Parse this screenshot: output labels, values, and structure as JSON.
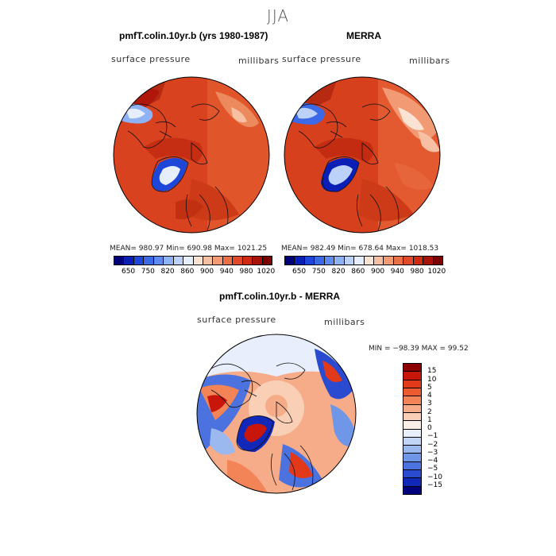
{
  "figure": {
    "title": "JJA"
  },
  "panels": {
    "model": {
      "title": "pmfT.colin.10yr.b (yrs 1980-1987)",
      "left_label": "surface pressure",
      "right_label": "millibars",
      "stats": "MEAN= 980.97   Min= 690.98   Max= 1021.25"
    },
    "obs": {
      "title": "MERRA",
      "left_label": "surface pressure",
      "right_label": "millibars",
      "stats": "MEAN= 982.49   Min= 678.64   Max= 1018.53"
    },
    "diff": {
      "title": "pmfT.colin.10yr.b - MERRA",
      "left_label": "surface pressure",
      "right_label": "millibars",
      "stats": "MIN = −98.39 MAX =  99.52"
    }
  },
  "colorbar_abs": {
    "ticks": [
      "650",
      "750",
      "820",
      "860",
      "900",
      "940",
      "980",
      "1020"
    ],
    "colors": [
      "#00007a",
      "#0a1fb5",
      "#1e46d9",
      "#3c69e6",
      "#5d8bef",
      "#8fb2f5",
      "#bcd2fa",
      "#e6eefc",
      "#fbe3d4",
      "#f7c0a2",
      "#f29a74",
      "#eb7048",
      "#e2492a",
      "#cf2a12",
      "#a81205",
      "#7a0000"
    ]
  },
  "colorbar_diff": {
    "ticks": [
      "15",
      "10",
      "5",
      "4",
      "3",
      "2",
      "1",
      "0",
      "−1",
      "−2",
      "−3",
      "−4",
      "−5",
      "−10",
      "−15"
    ],
    "colors": [
      "#8b0000",
      "#c8160a",
      "#e2391a",
      "#ec5a2f",
      "#f28458",
      "#f6ac88",
      "#f9cfb6",
      "#fbeee6",
      "#e8eefb",
      "#c3d5f6",
      "#9bb8ef",
      "#7096e7",
      "#4b72de",
      "#2a4bd0",
      "#1128b8",
      "#00007d"
    ]
  }
}
